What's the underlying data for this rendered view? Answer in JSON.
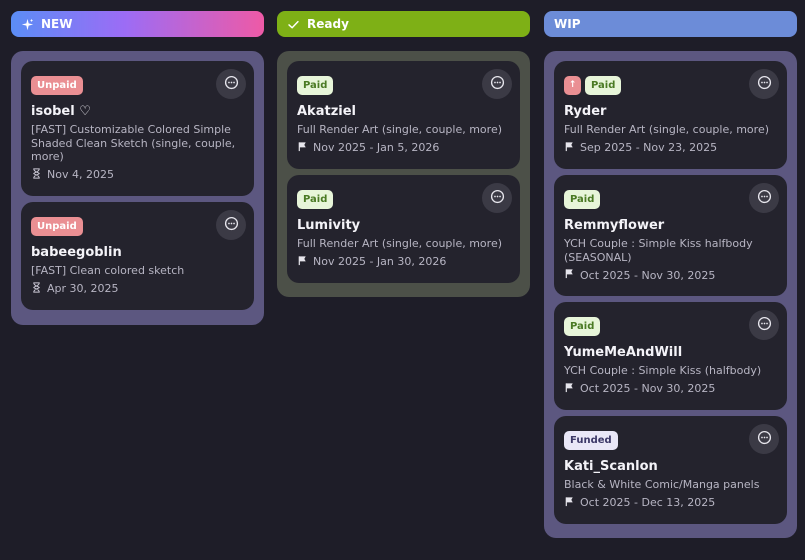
{
  "columns": [
    {
      "title": "NEW",
      "icon": "sparkle-icon",
      "header_color": "gradient #5b8df5 → #a46af4 → #ee5aa6",
      "body_color": "#5c5780",
      "cards": [
        {
          "badges": [
            "Unpaid"
          ],
          "name": "isobel ♡",
          "desc": "[FAST] Customizable Colored Simple Shaded Clean Sketch (single, couple, more)",
          "date_icon": "hourglass-icon",
          "date": "Nov 4, 2025"
        },
        {
          "badges": [
            "Unpaid"
          ],
          "name": "babeegoblin",
          "desc": "[FAST] Clean colored sketch",
          "date_icon": "hourglass-icon",
          "date": "Apr 30, 2025"
        }
      ]
    },
    {
      "title": "Ready",
      "icon": "check-icon",
      "header_color": "#7eb016",
      "body_color": "#4c5048",
      "cards": [
        {
          "badges": [
            "Paid"
          ],
          "name": "Akatziel",
          "desc": "Full Render Art (single, couple, more)",
          "date_icon": "flag-icon",
          "date": "Nov 2025 - Jan 5, 2026"
        },
        {
          "badges": [
            "Paid"
          ],
          "name": "Lumivity",
          "desc": "Full Render Art (single, couple, more)",
          "date_icon": "flag-icon",
          "date": "Nov 2025 - Jan 30, 2026"
        }
      ]
    },
    {
      "title": "WIP",
      "icon": "",
      "header_color": "#6c8cd8",
      "body_color": "#5c5780",
      "cards": [
        {
          "badges": [
            "↑",
            "Paid"
          ],
          "name": "Ryder",
          "desc": "Full Render Art (single, couple, more)",
          "date_icon": "flag-icon",
          "date": "Sep 2025 - Nov 23, 2025"
        },
        {
          "badges": [
            "Paid"
          ],
          "name": "Remmyflower",
          "desc": "YCH Couple : Simple Kiss halfbody (SEASONAL)",
          "date_icon": "flag-icon",
          "date": "Oct 2025 - Nov 30, 2025"
        },
        {
          "badges": [
            "Paid"
          ],
          "name": "YumeMeAndWill",
          "desc": "YCH Couple : Simple Kiss (halfbody)",
          "date_icon": "flag-icon",
          "date": "Oct 2025 - Nov 30, 2025"
        },
        {
          "badges": [
            "Funded"
          ],
          "name": "Kati_Scanlon",
          "desc": "Black & White Comic/Manga panels",
          "date_icon": "flag-icon",
          "date": "Oct 2025 - Dec 13, 2025"
        }
      ]
    }
  ]
}
